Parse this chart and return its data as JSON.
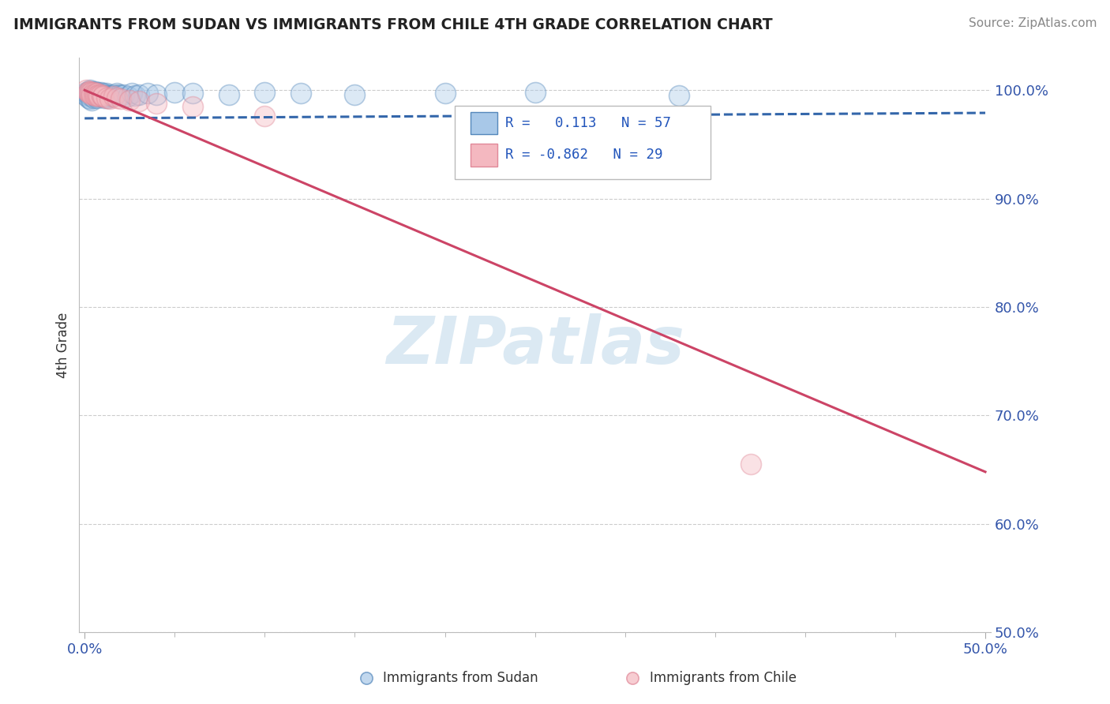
{
  "title": "IMMIGRANTS FROM SUDAN VS IMMIGRANTS FROM CHILE 4TH GRADE CORRELATION CHART",
  "source": "Source: ZipAtlas.com",
  "ylabel": "4th Grade",
  "xlim": [
    0.0,
    0.5
  ],
  "ylim": [
    0.5,
    1.03
  ],
  "xtick_positions": [
    0.0,
    0.5
  ],
  "xticklabels": [
    "0.0%",
    "50.0%"
  ],
  "ytick_positions": [
    0.5,
    0.6,
    0.7,
    0.8,
    0.9,
    1.0
  ],
  "yticklabels": [
    "50.0%",
    "60.0%",
    "70.0%",
    "80.0%",
    "90.0%",
    "100.0%"
  ],
  "legend_label1": "Immigrants from Sudan",
  "legend_label2": "Immigrants from Chile",
  "R1": "0.113",
  "N1": "57",
  "R2": "-0.862",
  "N2": "29",
  "blue_scatter_face": "#a8c8e8",
  "blue_scatter_edge": "#5588bb",
  "pink_scatter_face": "#f4b8c0",
  "pink_scatter_edge": "#e08898",
  "trend_blue_color": "#3366aa",
  "trend_pink_color": "#cc4466",
  "watermark_text": "ZIPatlas",
  "watermark_color": "#cce0ee",
  "sudan_x": [
    0.001,
    0.001,
    0.002,
    0.002,
    0.002,
    0.003,
    0.003,
    0.003,
    0.003,
    0.004,
    0.004,
    0.004,
    0.004,
    0.005,
    0.005,
    0.005,
    0.006,
    0.006,
    0.006,
    0.007,
    0.007,
    0.007,
    0.008,
    0.008,
    0.009,
    0.009,
    0.01,
    0.01,
    0.011,
    0.011,
    0.012,
    0.012,
    0.013,
    0.013,
    0.014,
    0.015,
    0.016,
    0.017,
    0.018,
    0.019,
    0.02,
    0.022,
    0.024,
    0.026,
    0.028,
    0.03,
    0.035,
    0.04,
    0.05,
    0.06,
    0.08,
    0.1,
    0.12,
    0.15,
    0.2,
    0.25,
    0.33
  ],
  "sudan_y": [
    0.998,
    0.995,
    0.999,
    0.996,
    0.993,
    1.0,
    0.998,
    0.995,
    0.992,
    0.999,
    0.997,
    0.994,
    0.991,
    0.998,
    0.996,
    0.993,
    0.999,
    0.997,
    0.994,
    0.998,
    0.996,
    0.993,
    0.997,
    0.995,
    0.998,
    0.994,
    0.997,
    0.994,
    0.996,
    0.993,
    0.997,
    0.994,
    0.996,
    0.993,
    0.995,
    0.994,
    0.996,
    0.995,
    0.997,
    0.996,
    0.995,
    0.996,
    0.994,
    0.997,
    0.995,
    0.996,
    0.997,
    0.996,
    0.998,
    0.997,
    0.996,
    0.998,
    0.997,
    0.996,
    0.997,
    0.998,
    0.995
  ],
  "chile_x": [
    0.001,
    0.002,
    0.002,
    0.003,
    0.003,
    0.004,
    0.004,
    0.005,
    0.005,
    0.006,
    0.006,
    0.007,
    0.007,
    0.008,
    0.008,
    0.009,
    0.01,
    0.01,
    0.012,
    0.014,
    0.016,
    0.018,
    0.02,
    0.025,
    0.03,
    0.04,
    0.06,
    0.1,
    0.37
  ],
  "chile_y": [
    1.0,
    0.999,
    0.998,
    0.999,
    0.997,
    0.998,
    0.996,
    0.998,
    0.996,
    0.997,
    0.995,
    0.997,
    0.995,
    0.996,
    0.994,
    0.996,
    0.995,
    0.994,
    0.993,
    0.992,
    0.994,
    0.993,
    0.992,
    0.991,
    0.99,
    0.988,
    0.985,
    0.976,
    0.655
  ],
  "sudan_trend_x0": 0.0,
  "sudan_trend_x1": 0.5,
  "sudan_trend_y0": 0.974,
  "sudan_trend_y1": 0.979,
  "chile_trend_x0": 0.0,
  "chile_trend_x1": 0.5,
  "chile_trend_y0": 1.0,
  "chile_trend_y1": 0.648
}
